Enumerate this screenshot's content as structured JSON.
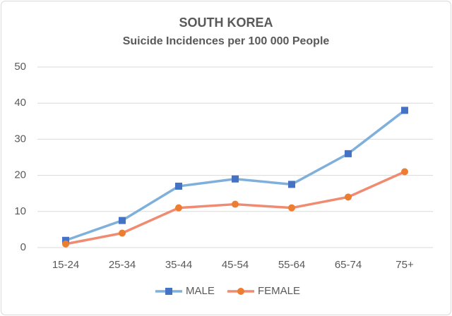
{
  "chart_data": {
    "type": "line",
    "title": "SOUTH KOREA",
    "subtitle": "Suicide Incidences per 100 000 People",
    "categories": [
      "15-24",
      "25-34",
      "35-44",
      "45-54",
      "55-64",
      "65-74",
      "75+"
    ],
    "series": [
      {
        "name": "MALE",
        "color": "#7fb0dc",
        "marker_color": "#4472c4",
        "marker": "square",
        "values": [
          2,
          7.5,
          17,
          19,
          17.5,
          26,
          38
        ]
      },
      {
        "name": "FEMALE",
        "color": "#f08a70",
        "marker_color": "#ed7d31",
        "marker": "circle",
        "values": [
          1,
          4,
          11,
          12,
          11,
          14,
          21
        ]
      }
    ],
    "ylim": [
      0,
      50
    ],
    "yticks": [
      0,
      10,
      20,
      30,
      40,
      50
    ],
    "grid": true,
    "legend": "bottom"
  }
}
